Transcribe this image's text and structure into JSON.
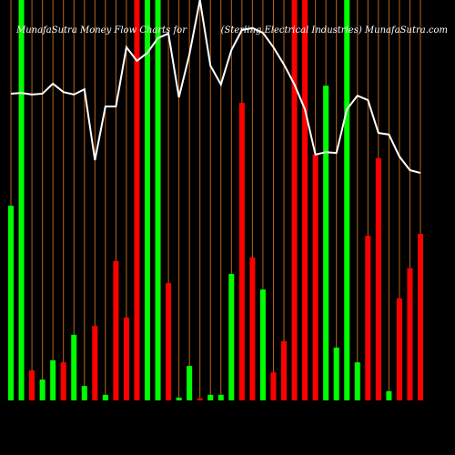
{
  "chart_data": {
    "type": "bar",
    "title": "MunafaSutra  Money Flow  Charts for",
    "subtitle": "(Sterling Electrical Industries) MunafaSutra.com",
    "ylim": [
      0,
      100
    ],
    "values": [
      48.6,
      100,
      7.5,
      5.2,
      10,
      9.5,
      16.4,
      3.6,
      18.6,
      1.4,
      34.8,
      20.7,
      100,
      100,
      100,
      29.3,
      0.7,
      8.6,
      0.5,
      1.4,
      1.4,
      31.6,
      74.3,
      35.7,
      27.7,
      7,
      14.8,
      100,
      100,
      61.4,
      78.6,
      13.2,
      100,
      9.5,
      41.1,
      60.5,
      2.3,
      25.5,
      33,
      41.6
    ],
    "colors": [
      "#00ff00",
      "#00ff00",
      "#ff0000",
      "#00ff00",
      "#00ff00",
      "#ff0000",
      "#00ff00",
      "#00ff00",
      "#ff0000",
      "#00ff00",
      "#ff0000",
      "#ff0000",
      "#ff0000",
      "#00ff00",
      "#00ff00",
      "#ff0000",
      "#00ff00",
      "#00ff00",
      "#ff0000",
      "#00ff00",
      "#00ff00",
      "#00ff00",
      "#ff0000",
      "#ff0000",
      "#00ff00",
      "#ff0000",
      "#ff0000",
      "#ff0000",
      "#ff0000",
      "#ff0000",
      "#00ff00",
      "#00ff00",
      "#00ff00",
      "#00ff00",
      "#ff0000",
      "#ff0000",
      "#00ff00",
      "#ff0000",
      "#ff0000",
      "#ff0000"
    ],
    "line": {
      "color": "#ffffff",
      "values": [
        76.6,
        76.8,
        76.4,
        76.6,
        79.1,
        77,
        76.4,
        77.7,
        60,
        73.4,
        73.4,
        88.2,
        84.8,
        86.8,
        90.5,
        91.6,
        75.7,
        86.4,
        100,
        83.6,
        78.9,
        87.5,
        92.5,
        93,
        91.8,
        88.2,
        83.9,
        78.9,
        72.7,
        61.4,
        62,
        61.8,
        72.7,
        76.1,
        75,
        66.8,
        66.4,
        60.9,
        57.5,
        56.8
      ]
    },
    "grid": true,
    "grid_color": "#b8651b"
  }
}
